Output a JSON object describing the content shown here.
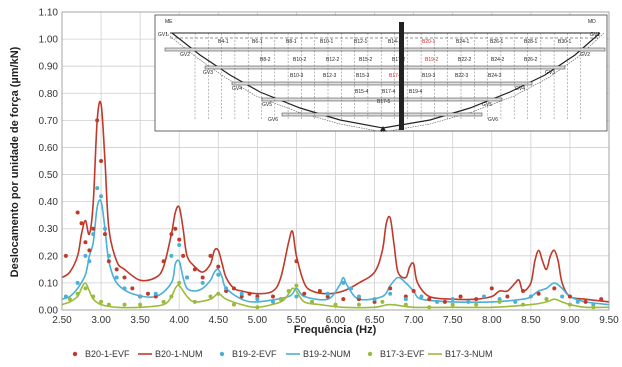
{
  "chart_data": {
    "type": "scatter",
    "xlabel": "Frequência (Hz)",
    "ylabel": "Deslocamento por unidade de força  (µm/kN)",
    "xlim": [
      2.5,
      9.5
    ],
    "ylim": [
      0,
      1.1
    ],
    "xticks": [
      "2.50",
      "3.00",
      "3.50",
      "4.00",
      "4.50",
      "5.00",
      "5.50",
      "6.00",
      "6.50",
      "7.00",
      "7.50",
      "8.00",
      "8.50",
      "9.00",
      "9.50"
    ],
    "yticks": [
      "0.00",
      "0.10",
      "0.20",
      "0.30",
      "0.40",
      "0.50",
      "0.60",
      "0.70",
      "0.80",
      "0.90",
      "1.00",
      "1.10"
    ],
    "grid": true,
    "legend_position": "bottom",
    "series": [
      {
        "name": "B20-1-EVF",
        "kind": "points",
        "color": "#c0392b",
        "x": [
          2.55,
          2.7,
          2.75,
          2.8,
          2.85,
          2.9,
          2.95,
          3.0,
          3.05,
          3.1,
          3.2,
          3.3,
          3.4,
          3.5,
          3.6,
          3.7,
          3.8,
          3.9,
          3.95,
          4.0,
          4.05,
          4.1,
          4.2,
          4.3,
          4.4,
          4.5,
          4.6,
          4.7,
          4.8,
          4.9,
          5.0,
          5.2,
          5.3,
          5.5,
          5.6,
          5.8,
          5.9,
          6.1,
          6.3,
          6.5,
          6.7,
          6.9,
          7.0,
          7.2,
          7.4,
          7.6,
          7.8,
          8.0,
          8.2,
          8.4,
          8.6,
          8.8,
          9.0,
          9.2,
          9.4
        ],
        "y": [
          0.2,
          0.36,
          0.32,
          0.25,
          0.22,
          0.3,
          0.7,
          0.55,
          0.28,
          0.18,
          0.15,
          0.12,
          0.08,
          0.05,
          0.06,
          0.05,
          0.18,
          0.28,
          0.3,
          0.26,
          0.2,
          0.12,
          0.15,
          0.12,
          0.2,
          0.16,
          0.07,
          0.08,
          0.05,
          0.06,
          0.05,
          0.05,
          0.04,
          0.18,
          0.06,
          0.07,
          0.05,
          0.04,
          0.04,
          0.03,
          0.08,
          0.05,
          0.07,
          0.04,
          0.03,
          0.05,
          0.04,
          0.08,
          0.05,
          0.07,
          0.06,
          0.08,
          0.05,
          0.03,
          0.04
        ]
      },
      {
        "name": "B20-1-NUM",
        "kind": "line",
        "color": "#c0392b",
        "x": [
          2.5,
          2.6,
          2.7,
          2.75,
          2.8,
          2.85,
          2.9,
          2.95,
          3.0,
          3.05,
          3.1,
          3.2,
          3.3,
          3.5,
          3.7,
          3.8,
          3.9,
          3.95,
          4.0,
          4.05,
          4.1,
          4.2,
          4.3,
          4.4,
          4.45,
          4.5,
          4.55,
          4.6,
          4.7,
          4.8,
          5.0,
          5.2,
          5.3,
          5.4,
          5.45,
          5.5,
          5.6,
          5.7,
          5.9,
          6.1,
          6.3,
          6.5,
          6.6,
          6.65,
          6.7,
          6.75,
          6.8,
          6.9,
          6.95,
          7.0,
          7.05,
          7.2,
          7.5,
          7.8,
          8.0,
          8.1,
          8.2,
          8.3,
          8.35,
          8.4,
          8.5,
          8.55,
          8.6,
          8.65,
          8.7,
          8.75,
          8.8,
          8.85,
          8.9,
          9.0,
          9.2,
          9.5
        ],
        "y": [
          0.12,
          0.14,
          0.2,
          0.28,
          0.33,
          0.28,
          0.4,
          0.7,
          0.76,
          0.55,
          0.3,
          0.18,
          0.15,
          0.11,
          0.12,
          0.16,
          0.28,
          0.36,
          0.38,
          0.3,
          0.2,
          0.16,
          0.14,
          0.17,
          0.22,
          0.22,
          0.17,
          0.12,
          0.08,
          0.07,
          0.06,
          0.07,
          0.12,
          0.25,
          0.29,
          0.2,
          0.1,
          0.07,
          0.06,
          0.07,
          0.1,
          0.14,
          0.22,
          0.32,
          0.34,
          0.24,
          0.14,
          0.12,
          0.16,
          0.17,
          0.1,
          0.05,
          0.04,
          0.04,
          0.05,
          0.07,
          0.07,
          0.1,
          0.11,
          0.07,
          0.1,
          0.18,
          0.22,
          0.18,
          0.15,
          0.2,
          0.22,
          0.18,
          0.1,
          0.05,
          0.04,
          0.03
        ]
      },
      {
        "name": "B19-2-EVF",
        "kind": "points",
        "color": "#4ab0d6",
        "x": [
          2.55,
          2.7,
          2.8,
          2.85,
          2.9,
          2.95,
          3.0,
          3.05,
          3.1,
          3.2,
          3.3,
          3.5,
          3.7,
          3.9,
          4.0,
          4.1,
          4.3,
          4.5,
          4.6,
          4.8,
          5.0,
          5.2,
          5.5,
          5.7,
          5.9,
          6.1,
          6.2,
          6.3,
          6.5,
          6.7,
          6.9,
          7.1,
          7.3,
          7.5,
          7.7,
          7.9,
          8.1,
          8.3,
          8.5,
          8.7,
          8.9,
          9.1,
          9.3
        ],
        "y": [
          0.05,
          0.1,
          0.2,
          0.18,
          0.28,
          0.45,
          0.42,
          0.3,
          0.2,
          0.12,
          0.08,
          0.05,
          0.06,
          0.2,
          0.24,
          0.12,
          0.1,
          0.13,
          0.08,
          0.06,
          0.04,
          0.03,
          0.05,
          0.03,
          0.06,
          0.1,
          0.08,
          0.05,
          0.04,
          0.06,
          0.04,
          0.05,
          0.03,
          0.04,
          0.03,
          0.05,
          0.04,
          0.03,
          0.05,
          0.04,
          0.05,
          0.03,
          0.02
        ]
      },
      {
        "name": "B19-2-NUM",
        "kind": "line",
        "color": "#4ab0d6",
        "x": [
          2.5,
          2.6,
          2.7,
          2.8,
          2.85,
          2.9,
          2.95,
          3.0,
          3.05,
          3.1,
          3.2,
          3.4,
          3.7,
          3.9,
          3.95,
          4.0,
          4.05,
          4.1,
          4.2,
          4.3,
          4.4,
          4.45,
          4.5,
          4.55,
          4.6,
          4.8,
          5.0,
          5.4,
          5.5,
          5.6,
          5.9,
          6.05,
          6.1,
          6.15,
          6.3,
          6.6,
          6.7,
          6.8,
          6.9,
          7.0,
          7.1,
          7.5,
          8.0,
          8.4,
          8.5,
          8.6,
          8.7,
          8.8,
          8.9,
          9.0,
          9.2,
          9.5
        ],
        "y": [
          0.04,
          0.05,
          0.08,
          0.13,
          0.2,
          0.25,
          0.38,
          0.4,
          0.3,
          0.18,
          0.1,
          0.06,
          0.05,
          0.1,
          0.17,
          0.18,
          0.12,
          0.08,
          0.07,
          0.08,
          0.11,
          0.14,
          0.15,
          0.12,
          0.08,
          0.04,
          0.03,
          0.05,
          0.08,
          0.05,
          0.04,
          0.09,
          0.12,
          0.09,
          0.04,
          0.05,
          0.09,
          0.12,
          0.1,
          0.07,
          0.04,
          0.03,
          0.03,
          0.04,
          0.05,
          0.07,
          0.08,
          0.1,
          0.08,
          0.05,
          0.03,
          0.02
        ]
      },
      {
        "name": "B17-3-EVF",
        "kind": "points",
        "color": "#9bbb3b",
        "x": [
          2.6,
          2.7,
          2.8,
          2.9,
          3.0,
          3.1,
          3.3,
          3.5,
          3.8,
          3.9,
          4.0,
          4.2,
          4.4,
          4.5,
          4.7,
          5.0,
          5.3,
          5.4,
          5.5,
          5.7,
          6.0,
          6.3,
          6.6,
          6.9,
          7.2,
          7.5,
          7.8,
          8.1,
          8.4,
          8.7,
          9.0,
          9.3
        ],
        "y": [
          0.04,
          0.06,
          0.08,
          0.05,
          0.03,
          0.02,
          0.02,
          0.02,
          0.03,
          0.05,
          0.1,
          0.03,
          0.05,
          0.06,
          0.02,
          0.01,
          0.04,
          0.07,
          0.09,
          0.03,
          0.02,
          0.02,
          0.03,
          0.02,
          0.01,
          0.02,
          0.02,
          0.03,
          0.02,
          0.04,
          0.02,
          0.01
        ]
      },
      {
        "name": "B17-3-NUM",
        "kind": "line",
        "color": "#9bbb3b",
        "x": [
          2.5,
          2.6,
          2.7,
          2.75,
          2.8,
          2.85,
          2.9,
          3.0,
          3.2,
          3.5,
          3.8,
          3.9,
          3.95,
          4.0,
          4.1,
          4.2,
          4.4,
          4.5,
          4.6,
          4.8,
          5.0,
          5.3,
          5.4,
          5.45,
          5.5,
          5.6,
          5.8,
          6.1,
          6.5,
          6.7,
          7.0,
          7.5,
          8.0,
          8.5,
          8.7,
          8.8,
          8.9,
          9.0,
          9.2,
          9.5
        ],
        "y": [
          0.02,
          0.03,
          0.05,
          0.08,
          0.1,
          0.07,
          0.04,
          0.02,
          0.01,
          0.01,
          0.02,
          0.05,
          0.08,
          0.09,
          0.05,
          0.03,
          0.04,
          0.06,
          0.04,
          0.02,
          0.01,
          0.03,
          0.06,
          0.08,
          0.07,
          0.03,
          0.02,
          0.01,
          0.01,
          0.02,
          0.01,
          0.01,
          0.01,
          0.02,
          0.03,
          0.04,
          0.03,
          0.02,
          0.01,
          0.01
        ]
      }
    ]
  },
  "inset": {
    "labels_top": [
      "ME",
      "MD"
    ],
    "guard": [
      "GV1",
      "GV2",
      "GV3",
      "GV4",
      "GV5",
      "GV6"
    ],
    "bays_row1": [
      "B4-1",
      "B6-1",
      "B8-1",
      "B10-1",
      "B12-1",
      "B14-1",
      "B20-1",
      "B24-1",
      "B26-1",
      "B28-1",
      "B30-1"
    ],
    "bays_row2": [
      "B8-2",
      "B10-2",
      "B12-2",
      "B15-2",
      "B17-2",
      "B19-2",
      "B22-2",
      "B24-2",
      "B26-2"
    ],
    "bays_row3": [
      "B10-3",
      "B12-3",
      "B15-3",
      "B17-3",
      "B19-3",
      "B22-3",
      "B24-3"
    ],
    "bays_row4": [
      "B15-4",
      "B17-4",
      "B19-4"
    ],
    "bays_row5": [
      "B17-5"
    ],
    "highlight": [
      "B20-1",
      "B19-2",
      "B17-3"
    ]
  }
}
